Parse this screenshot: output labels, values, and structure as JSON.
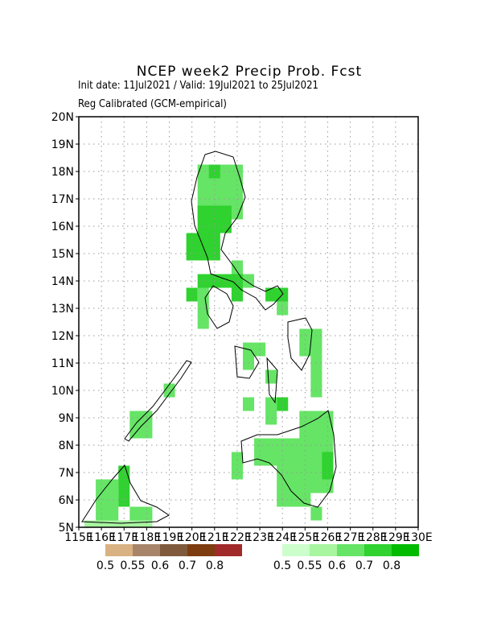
{
  "chart_data": {
    "type": "grid-map",
    "title": "NCEP week2 Precip Prob. Fcst",
    "subtitle": "Init date: 11Jul2021 / Valid: 19Jul2021 to 25Jul2021",
    "note": "Reg Calibrated (GCM-empirical)",
    "xlim": [
      115,
      130
    ],
    "ylim": [
      5,
      20
    ],
    "xticks": [
      {
        "value": 115,
        "label": "115E"
      },
      {
        "value": 116,
        "label": "116E"
      },
      {
        "value": 117,
        "label": "117E"
      },
      {
        "value": 118,
        "label": "118E"
      },
      {
        "value": 119,
        "label": "119E"
      },
      {
        "value": 120,
        "label": "120E"
      },
      {
        "value": 121,
        "label": "121E"
      },
      {
        "value": 122,
        "label": "122E"
      },
      {
        "value": 123,
        "label": "123E"
      },
      {
        "value": 124,
        "label": "124E"
      },
      {
        "value": 125,
        "label": "125E"
      },
      {
        "value": 126,
        "label": "126E"
      },
      {
        "value": 127,
        "label": "127E"
      },
      {
        "value": 128,
        "label": "128E"
      },
      {
        "value": 129,
        "label": "129E"
      },
      {
        "value": 130,
        "label": "130E"
      }
    ],
    "yticks": [
      {
        "value": 5,
        "label": "5N"
      },
      {
        "value": 6,
        "label": "6N"
      },
      {
        "value": 7,
        "label": "7N"
      },
      {
        "value": 8,
        "label": "8N"
      },
      {
        "value": 9,
        "label": "9N"
      },
      {
        "value": 10,
        "label": "10N"
      },
      {
        "value": 11,
        "label": "11N"
      },
      {
        "value": 12,
        "label": "12N"
      },
      {
        "value": 13,
        "label": "13N"
      },
      {
        "value": 14,
        "label": "14N"
      },
      {
        "value": 15,
        "label": "15N"
      },
      {
        "value": 16,
        "label": "16N"
      },
      {
        "value": 17,
        "label": "17N"
      },
      {
        "value": 18,
        "label": "18N"
      },
      {
        "value": 19,
        "label": "19N"
      },
      {
        "value": 20,
        "label": "20N"
      }
    ],
    "grid": true,
    "dry_scale": {
      "values": [
        0.5,
        0.55,
        0.6,
        0.7,
        0.8
      ],
      "colors": [
        "#d8b283",
        "#a8856a",
        "#7f5a3c",
        "#7e3d10",
        "#a12b2b"
      ]
    },
    "wet_scale": {
      "values": [
        0.5,
        0.55,
        0.6,
        0.7,
        0.8
      ],
      "colors": [
        "#ccffcc",
        "#a8f5a0",
        "#66e466",
        "#2fd22f",
        "#00bb00"
      ]
    },
    "cells": [
      [
        120.25,
        16.25,
        122.25,
        18.25,
        0.6
      ],
      [
        120.75,
        17.75,
        121.25,
        18.25,
        0.7
      ],
      [
        120.25,
        15.75,
        121.75,
        16.75,
        0.7
      ],
      [
        119.75,
        14.75,
        121.25,
        15.75,
        0.7
      ],
      [
        121.75,
        14.25,
        122.25,
        14.75,
        0.6
      ],
      [
        120.25,
        13.75,
        122.25,
        14.25,
        0.7
      ],
      [
        119.75,
        13.25,
        120.25,
        13.75,
        0.7
      ],
      [
        120.25,
        12.25,
        120.75,
        13.75,
        0.6
      ],
      [
        121.75,
        13.25,
        122.25,
        13.75,
        0.7
      ],
      [
        122.25,
        13.75,
        122.75,
        14.25,
        0.6
      ],
      [
        123.25,
        13.25,
        124.25,
        13.75,
        0.7
      ],
      [
        123.75,
        12.75,
        124.25,
        13.25,
        0.6
      ],
      [
        122.25,
        10.75,
        122.75,
        11.75,
        0.6
      ],
      [
        122.75,
        11.25,
        123.25,
        11.75,
        0.6
      ],
      [
        124.75,
        11.25,
        125.75,
        12.25,
        0.6
      ],
      [
        125.25,
        9.75,
        125.75,
        11.25,
        0.6
      ],
      [
        123.25,
        10.25,
        123.75,
        10.75,
        0.6
      ],
      [
        122.25,
        9.25,
        122.75,
        9.75,
        0.6
      ],
      [
        123.25,
        8.75,
        123.75,
        9.75,
        0.6
      ],
      [
        123.75,
        9.25,
        124.25,
        9.75,
        0.7
      ],
      [
        124.75,
        6.25,
        126.25,
        9.25,
        0.6
      ],
      [
        123.75,
        5.75,
        125.25,
        8.25,
        0.6
      ],
      [
        122.75,
        7.25,
        124.25,
        8.25,
        0.6
      ],
      [
        125.75,
        6.75,
        126.25,
        7.75,
        0.7
      ],
      [
        121.75,
        6.75,
        122.25,
        7.75,
        0.6
      ],
      [
        125.25,
        5.25,
        125.75,
        5.75,
        0.6
      ],
      [
        117.25,
        8.25,
        118.25,
        9.25,
        0.6
      ],
      [
        118.75,
        9.75,
        119.25,
        10.25,
        0.6
      ],
      [
        115.75,
        5.25,
        116.75,
        6.75,
        0.6
      ],
      [
        116.75,
        5.75,
        117.25,
        7.25,
        0.7
      ],
      [
        117.25,
        5.25,
        118.25,
        5.75,
        0.6
      ],
      [
        115.25,
        5.0,
        118.25,
        5.25,
        0.55
      ]
    ]
  }
}
